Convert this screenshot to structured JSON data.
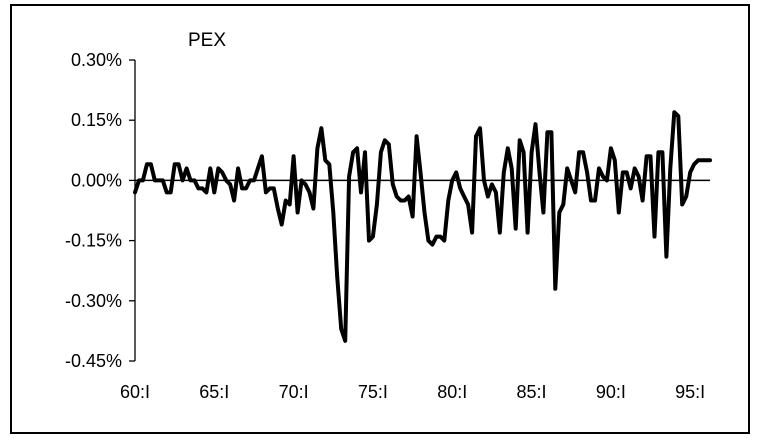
{
  "chart_data": {
    "type": "line",
    "title": "PEX",
    "xlabel": "",
    "ylabel": "",
    "grid": false,
    "legend": "none",
    "ylim": [
      -0.0045,
      0.003
    ],
    "yticks": [
      0.003,
      0.0015,
      0.0,
      -0.0015,
      -0.003,
      -0.0045
    ],
    "ytick_labels": [
      "0.30%",
      "0.15%",
      "0.00%",
      "-0.15%",
      "-0.30%",
      "-0.45%"
    ],
    "xticks": [
      "60:I",
      "65:I",
      "70:I",
      "75:I",
      "80:I",
      "85:I",
      "90:I",
      "95:I"
    ],
    "x_start": "60:I",
    "x_end": "98:IV",
    "line_color": "#000000",
    "series": [
      {
        "values": [
          -0.0003,
          0.0,
          0.0,
          0.0004,
          0.0004,
          0.0,
          0.0,
          0.0,
          -0.0003,
          -0.0003,
          0.0004,
          0.0004,
          0.0,
          0.0003,
          0.0,
          0.0,
          -0.0002,
          -0.0002,
          -0.0003,
          0.0003,
          -0.0003,
          0.0003,
          0.0002,
          0.0,
          -0.0001,
          -0.0005,
          0.0003,
          -0.0002,
          -0.0002,
          0.0,
          0.0,
          0.0003,
          0.0006,
          -0.0003,
          -0.0002,
          -0.0002,
          -0.0007,
          -0.0011,
          -0.0005,
          -0.0006,
          0.0006,
          -0.0008,
          0.0,
          -0.0001,
          -0.0003,
          -0.0007,
          0.0008,
          0.0013,
          0.0005,
          0.0004,
          -0.0008,
          -0.0024,
          -0.0037,
          -0.004,
          0.0001,
          0.0007,
          0.0008,
          -0.0003,
          0.0007,
          -0.0015,
          -0.0014,
          -0.0006,
          0.0007,
          0.001,
          0.0009,
          -0.0001,
          -0.0004,
          -0.0005,
          -0.0005,
          -0.0004,
          -0.0009,
          0.0011,
          0.0002,
          -0.0008,
          -0.0015,
          -0.0016,
          -0.0014,
          -0.0014,
          -0.0015,
          -0.0005,
          0.0,
          0.0002,
          -0.0002,
          -0.0004,
          -0.0006,
          -0.0013,
          0.0011,
          0.0013,
          0.0,
          -0.0004,
          -0.0001,
          -0.0003,
          -0.0013,
          0.0002,
          0.0008,
          0.0003,
          -0.0012,
          0.001,
          0.0007,
          -0.0013,
          0.0007,
          0.0014,
          0.0002,
          -0.0008,
          0.0012,
          0.0012,
          -0.0027,
          -0.0008,
          -0.0006,
          0.0003,
          0.0,
          -0.0003,
          0.0007,
          0.0007,
          0.0002,
          -0.0005,
          -0.0005,
          0.0003,
          0.0001,
          0.0,
          0.0008,
          0.0005,
          -0.0008,
          0.0002,
          0.0002,
          -0.0002,
          0.0003,
          0.0001,
          -0.0005,
          0.0006,
          0.0006,
          -0.0014,
          0.0007,
          0.0007,
          -0.0019,
          0.0003,
          0.0017,
          0.0016,
          -0.0006,
          -0.0004,
          0.0002,
          0.0004,
          0.0005,
          0.0005,
          0.0005,
          0.0005
        ]
      }
    ]
  }
}
